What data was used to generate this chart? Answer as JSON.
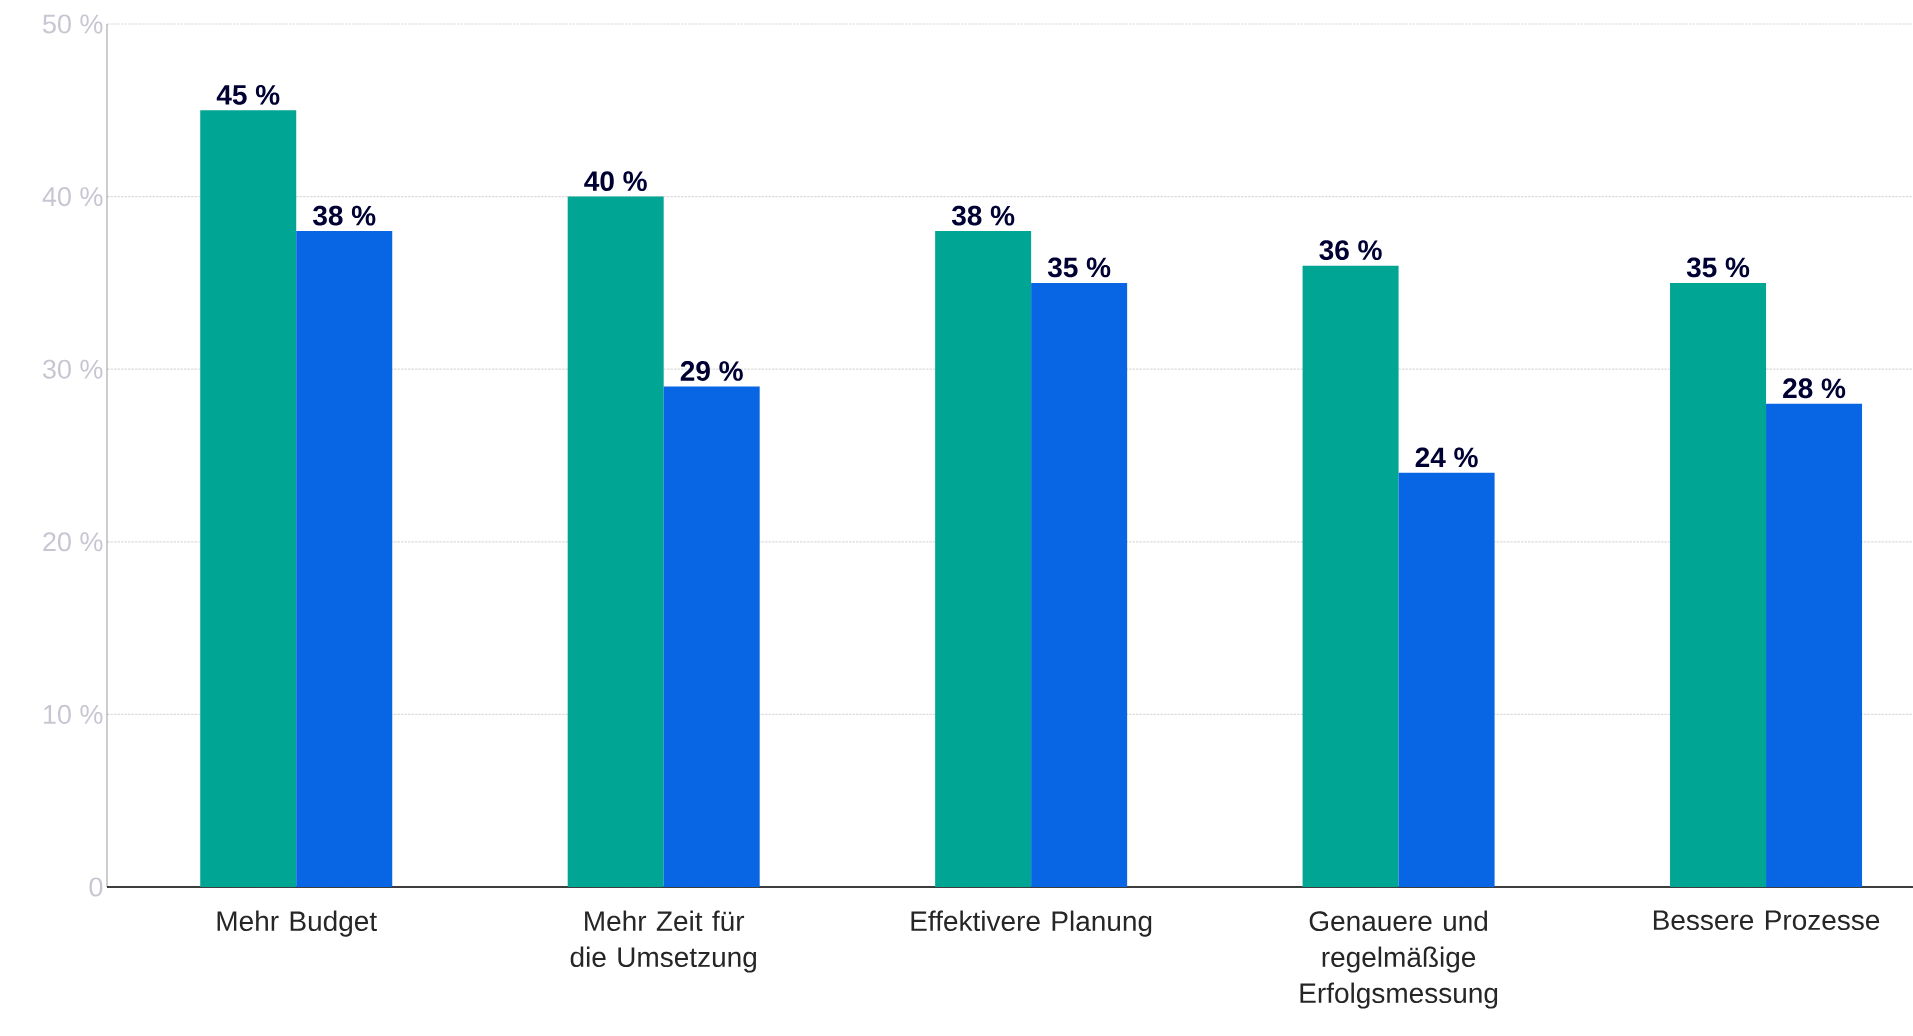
{
  "chart_data": {
    "type": "bar",
    "categories": [
      "Mehr Budget",
      "Mehr Zeit für die Umsetzung",
      "Effektivere Planung",
      "Genauere und regelmäßige Erfolgsmessung",
      "Bessere Prozesse"
    ],
    "series": [
      {
        "color": "#00a594",
        "values": [
          45,
          40,
          38,
          36,
          35
        ],
        "value_labels": [
          "45 %",
          "40 %",
          "38 %",
          "36 %",
          "35 %"
        ]
      },
      {
        "color": "#0866e5",
        "values": [
          38,
          29,
          35,
          24,
          28
        ],
        "value_labels": [
          "38 %",
          "29 %",
          "35 %",
          "24 %",
          "28 %"
        ]
      }
    ],
    "ylim": [
      0,
      50
    ],
    "yticks": [
      {
        "value": 0,
        "label": "0"
      },
      {
        "value": 10,
        "label": "10 %"
      },
      {
        "value": 20,
        "label": "20 %"
      },
      {
        "value": 30,
        "label": "30 %"
      },
      {
        "value": 40,
        "label": "40 %"
      },
      {
        "value": 50,
        "label": "50 %"
      }
    ],
    "grid": "y"
  }
}
